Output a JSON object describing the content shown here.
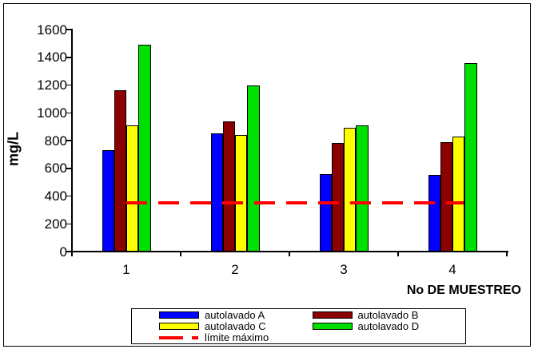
{
  "chart_data": {
    "type": "bar",
    "title": "",
    "xlabel": "No DE MUESTREO",
    "ylabel": "mg/L",
    "ylim": [
      0,
      1600
    ],
    "yticks": [
      0,
      200,
      400,
      600,
      800,
      1000,
      1200,
      1400,
      1600
    ],
    "grid": false,
    "legend_position": "bottom",
    "categories": [
      "1",
      "2",
      "3",
      "4"
    ],
    "series": [
      {
        "name": "autolavado A",
        "color": "#0000ff",
        "values": [
          730,
          850,
          560,
          550
        ]
      },
      {
        "name": "autolavado B",
        "color": "#8b0000",
        "values": [
          1160,
          940,
          780,
          790
        ]
      },
      {
        "name": "autolavado C",
        "color": "#ffff00",
        "values": [
          910,
          840,
          890,
          830
        ]
      },
      {
        "name": "autolavado D",
        "color": "#00e000",
        "values": [
          1490,
          1200,
          910,
          1360
        ]
      }
    ],
    "limit_line": {
      "name": "límite máximo",
      "value": 350,
      "color": "#ff0000",
      "style": "dashed"
    }
  }
}
